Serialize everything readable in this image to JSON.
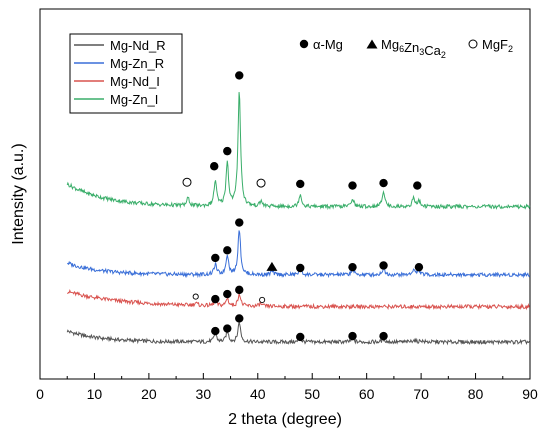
{
  "chart_data": {
    "type": "line",
    "xlabel": "2 theta (degree)",
    "ylabel": "Intensity (a.u.)",
    "xlim": [
      0,
      90
    ],
    "xticks": [
      0,
      10,
      20,
      30,
      40,
      50,
      60,
      70,
      80,
      90
    ],
    "grid": false,
    "legend": {
      "placement": "top-left",
      "entries": [
        {
          "name": "Mg-Nd_R",
          "color": "#555555"
        },
        {
          "name": "Mg-Zn_R",
          "color": "#3a6fd8"
        },
        {
          "name": "Mg-Nd_I",
          "color": "#d9534f"
        },
        {
          "name": "Mg-Zn_I",
          "color": "#3aae6a"
        }
      ]
    },
    "phase_legend": [
      {
        "symbol": "filled-circle",
        "label": "α-Mg"
      },
      {
        "symbol": "filled-triangle",
        "label": "Mg",
        "formula": [
          {
            "t": "Mg"
          },
          {
            "t": "6",
            "sub": true
          },
          {
            "t": "Zn"
          },
          {
            "t": "3",
            "sub": true
          },
          {
            "t": "Ca"
          },
          {
            "t": "2",
            "sub": true
          }
        ]
      },
      {
        "symbol": "open-circle",
        "label": "MgF",
        "formula": [
          {
            "t": "MgF"
          },
          {
            "t": "2",
            "sub": true
          }
        ]
      }
    ],
    "x_range": [
      5,
      90
    ],
    "series": [
      {
        "name": "Mg-Nd_R",
        "color": "#555555",
        "offset": 0.4,
        "background": {
          "start": 1.3,
          "tau": 6
        },
        "peaks": [
          [
            32.2,
            1.0
          ],
          [
            34.4,
            1.3
          ],
          [
            36.6,
            2.4
          ],
          [
            47.8,
            0.35
          ],
          [
            57.4,
            0.4
          ],
          [
            63.1,
            0.4
          ],
          [
            68.6,
            0.25
          ],
          [
            70.0,
            0.2
          ]
        ],
        "markers": [
          {
            "x": 32.2,
            "y": 1.7,
            "symbol": "filled-circle"
          },
          {
            "x": 34.4,
            "y": 2.0,
            "symbol": "filled-circle"
          },
          {
            "x": 36.6,
            "y": 3.2,
            "symbol": "filled-circle"
          },
          {
            "x": 47.8,
            "y": 1.0,
            "symbol": "filled-circle"
          },
          {
            "x": 57.4,
            "y": 1.1,
            "symbol": "filled-circle"
          },
          {
            "x": 63.1,
            "y": 1.1,
            "symbol": "filled-circle"
          }
        ]
      },
      {
        "name": "Mg-Nd_I",
        "color": "#d9534f",
        "offset": 4.6,
        "background": {
          "start": 1.8,
          "tau": 10
        },
        "peaks": [
          [
            28.6,
            0.3
          ],
          [
            32.2,
            0.6
          ],
          [
            34.4,
            0.9
          ],
          [
            36.6,
            1.5
          ],
          [
            40.5,
            0.3
          ]
        ],
        "markers": [
          {
            "x": 28.6,
            "y": 5.8,
            "symbol": "open-circle-small"
          },
          {
            "x": 32.2,
            "y": 5.5,
            "symbol": "filled-circle"
          },
          {
            "x": 34.4,
            "y": 6.1,
            "symbol": "filled-circle"
          },
          {
            "x": 36.6,
            "y": 6.6,
            "symbol": "filled-circle"
          },
          {
            "x": 40.8,
            "y": 5.4,
            "symbol": "open-circle-small"
          }
        ]
      },
      {
        "name": "Mg-Zn_R",
        "color": "#3a6fd8",
        "offset": 8.4,
        "background": {
          "start": 1.4,
          "tau": 6
        },
        "peaks": [
          [
            32.2,
            1.2
          ],
          [
            34.4,
            2.4
          ],
          [
            36.6,
            5.5
          ],
          [
            42.6,
            0.4
          ],
          [
            47.8,
            0.7
          ],
          [
            57.4,
            0.6
          ],
          [
            63.1,
            0.8
          ],
          [
            68.6,
            0.6
          ],
          [
            69.6,
            0.5
          ]
        ],
        "markers": [
          {
            "x": 32.2,
            "y": 10.4,
            "symbol": "filled-circle"
          },
          {
            "x": 34.4,
            "y": 11.3,
            "symbol": "filled-circle"
          },
          {
            "x": 36.6,
            "y": 14.6,
            "symbol": "filled-circle"
          },
          {
            "x": 42.6,
            "y": 9.4,
            "symbol": "filled-triangle"
          },
          {
            "x": 47.8,
            "y": 9.2,
            "symbol": "filled-circle"
          },
          {
            "x": 57.4,
            "y": 9.3,
            "symbol": "filled-circle"
          },
          {
            "x": 63.1,
            "y": 9.5,
            "symbol": "filled-circle"
          },
          {
            "x": 69.6,
            "y": 9.3,
            "symbol": "filled-circle"
          }
        ]
      },
      {
        "name": "Mg-Zn_I",
        "color": "#3aae6a",
        "offset": 16.5,
        "background": {
          "start": 2.7,
          "tau": 7
        },
        "peaks": [
          [
            27.2,
            0.9
          ],
          [
            32.2,
            3.0
          ],
          [
            34.4,
            5.2
          ],
          [
            36.6,
            13.8
          ],
          [
            40.6,
            0.6
          ],
          [
            47.8,
            1.5
          ],
          [
            57.4,
            1.0
          ],
          [
            63.1,
            1.9
          ],
          [
            68.6,
            1.0
          ],
          [
            69.6,
            0.7
          ]
        ],
        "markers": [
          {
            "x": 27.0,
            "y": 19.4,
            "symbol": "open-circle"
          },
          {
            "x": 32.0,
            "y": 21.3,
            "symbol": "filled-circle"
          },
          {
            "x": 34.4,
            "y": 23.1,
            "symbol": "filled-circle"
          },
          {
            "x": 36.6,
            "y": 32.1,
            "symbol": "filled-circle"
          },
          {
            "x": 40.6,
            "y": 19.3,
            "symbol": "open-circle"
          },
          {
            "x": 47.8,
            "y": 19.2,
            "symbol": "filled-circle"
          },
          {
            "x": 57.4,
            "y": 19.0,
            "symbol": "filled-circle"
          },
          {
            "x": 63.1,
            "y": 19.3,
            "symbol": "filled-circle"
          },
          {
            "x": 69.3,
            "y": 19.0,
            "symbol": "filled-circle"
          }
        ]
      }
    ]
  }
}
